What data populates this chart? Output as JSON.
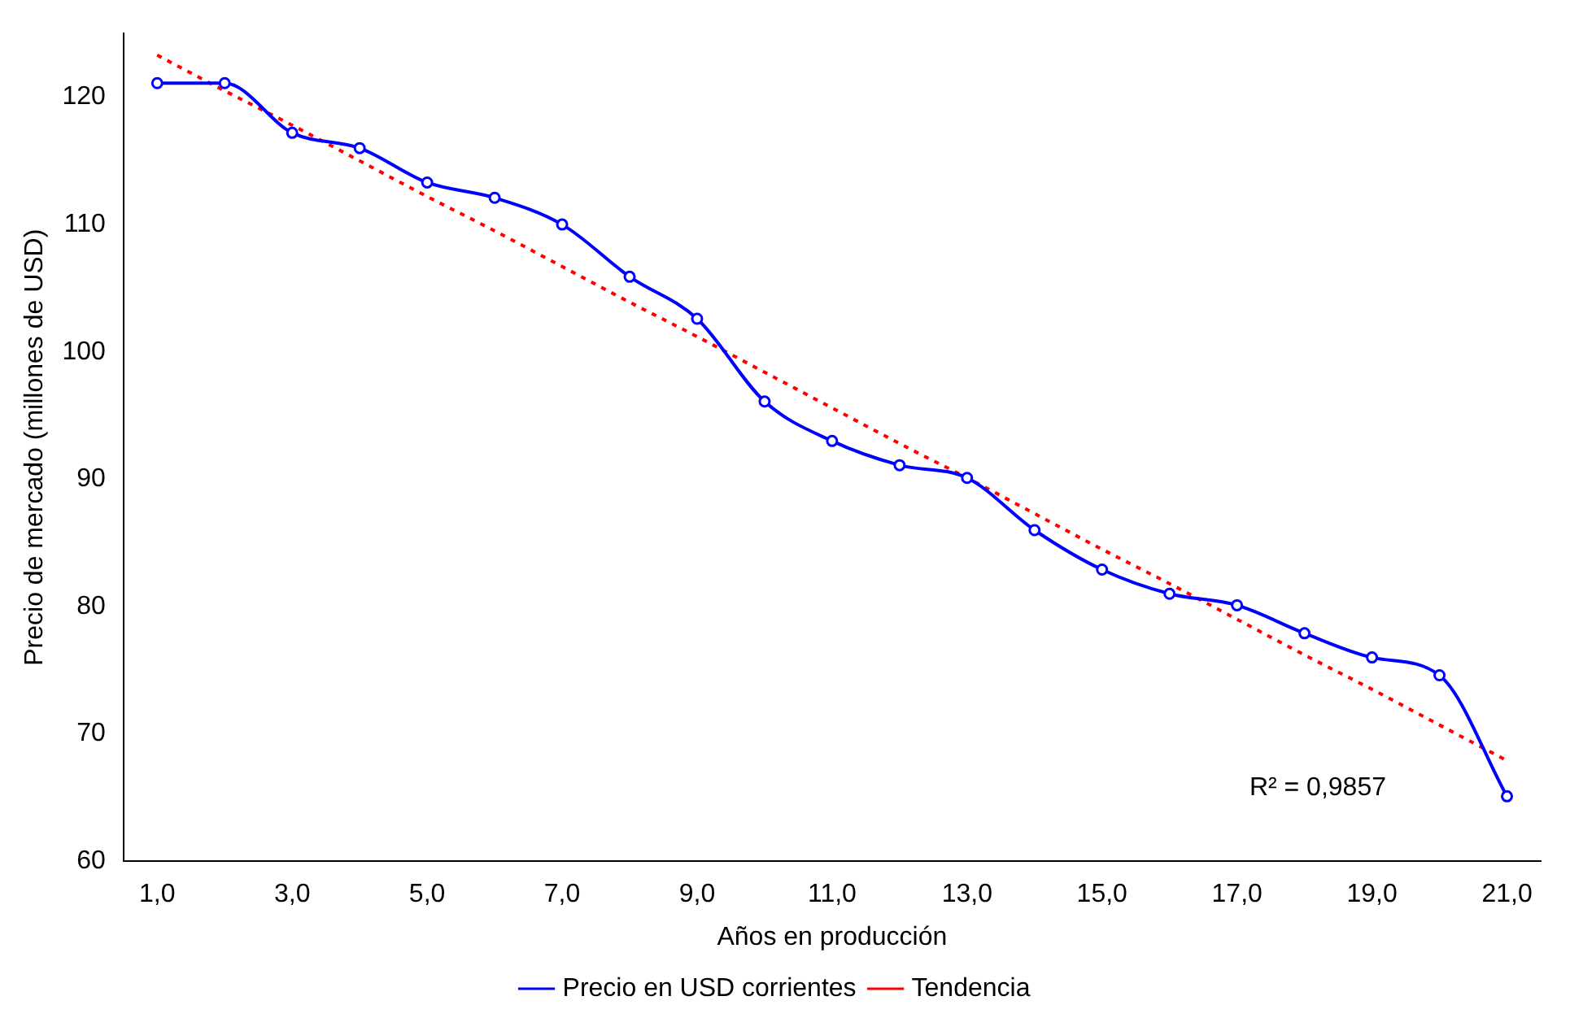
{
  "chart_data": {
    "type": "line",
    "xlabel": "Años en producción",
    "ylabel": "Precio de mercado (millones de USD)",
    "categories": [
      "1,0",
      null,
      "3,0",
      null,
      "5,0",
      null,
      "7,0",
      null,
      "9,0",
      null,
      "11,0",
      null,
      "13,0",
      null,
      "15,0",
      null,
      "17,0",
      null,
      "19,0",
      null,
      "21,0"
    ],
    "series": [
      {
        "name": "Precio en USD corrientes",
        "color": "#0000ff",
        "marker": "circle",
        "line_style": "solid",
        "values": [
          121.1,
          121.1,
          117.2,
          116.0,
          113.3,
          112.1,
          110.0,
          105.9,
          102.6,
          96.1,
          93.0,
          91.1,
          90.1,
          86.0,
          82.9,
          81.0,
          80.1,
          77.9,
          76.0,
          74.6,
          65.1
        ]
      },
      {
        "name": "Tendencia",
        "color": "#ff0000",
        "marker": "none",
        "line_style": "dotted",
        "values": [
          123.3,
          120.5,
          117.8,
          115.0,
          112.2,
          109.5,
          106.7,
          103.9,
          101.2,
          98.4,
          95.6,
          92.8,
          90.1,
          87.3,
          84.5,
          81.8,
          79.0,
          76.2,
          73.5,
          70.7,
          67.9
        ]
      }
    ],
    "ylim": [
      60,
      125
    ],
    "yticks": [
      60,
      70,
      80,
      90,
      100,
      110,
      120
    ],
    "grid": false,
    "legend": "bottom",
    "annotations": [
      "R² = 0,9857"
    ]
  }
}
